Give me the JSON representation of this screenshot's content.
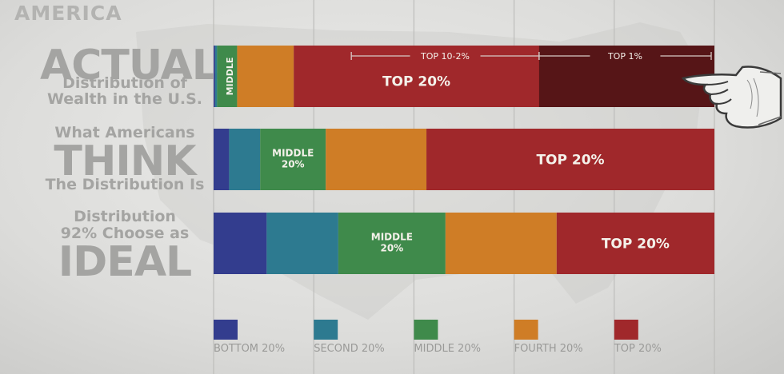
{
  "header": {
    "brand": "AMERICA"
  },
  "row_labels": {
    "actual": {
      "line1": "ACTUAL",
      "line2": "Distribution of",
      "line3": "Wealth in the U.S."
    },
    "think": {
      "line1": "What Americans",
      "line2": "THINK",
      "line3": "The Distribution Is"
    },
    "ideal": {
      "line1": "Distribution",
      "line2": "92% Choose as",
      "line3": "IDEAL"
    }
  },
  "chart_data": {
    "type": "bar",
    "stacked": true,
    "orientation": "horizontal",
    "xlim": [
      0,
      100
    ],
    "grid": true,
    "legend_position": "bottom",
    "categories": [
      "BOTTOM 20%",
      "SECOND 20%",
      "MIDDLE 20%",
      "FOURTH 20%",
      "TOP 20%"
    ],
    "colors": [
      "#333d8e",
      "#2d7a90",
      "#3f8a4b",
      "#cf7d26",
      "#a0282b"
    ],
    "rows": [
      {
        "id": "actual",
        "values": [
          0.3,
          0.4,
          4,
          11.3,
          84
        ],
        "segment_labels": [
          "",
          "",
          "MIDDLE",
          "",
          "TOP 20%"
        ],
        "top_split": {
          "top_1_percent_share": 35,
          "color": "#561517"
        },
        "annotations": [
          "TOP 10-2%",
          "TOP 1%"
        ]
      },
      {
        "id": "think",
        "values": [
          3.1,
          6.2,
          13.1,
          20.1,
          57.5
        ],
        "segment_labels": [
          "",
          "",
          "MIDDLE\n20%",
          "",
          "TOP 20%"
        ]
      },
      {
        "id": "ideal",
        "values": [
          10.6,
          14.3,
          21.4,
          22.2,
          31.5
        ],
        "segment_labels": [
          "",
          "",
          "MIDDLE\n20%",
          "",
          "TOP 20%"
        ]
      }
    ]
  }
}
